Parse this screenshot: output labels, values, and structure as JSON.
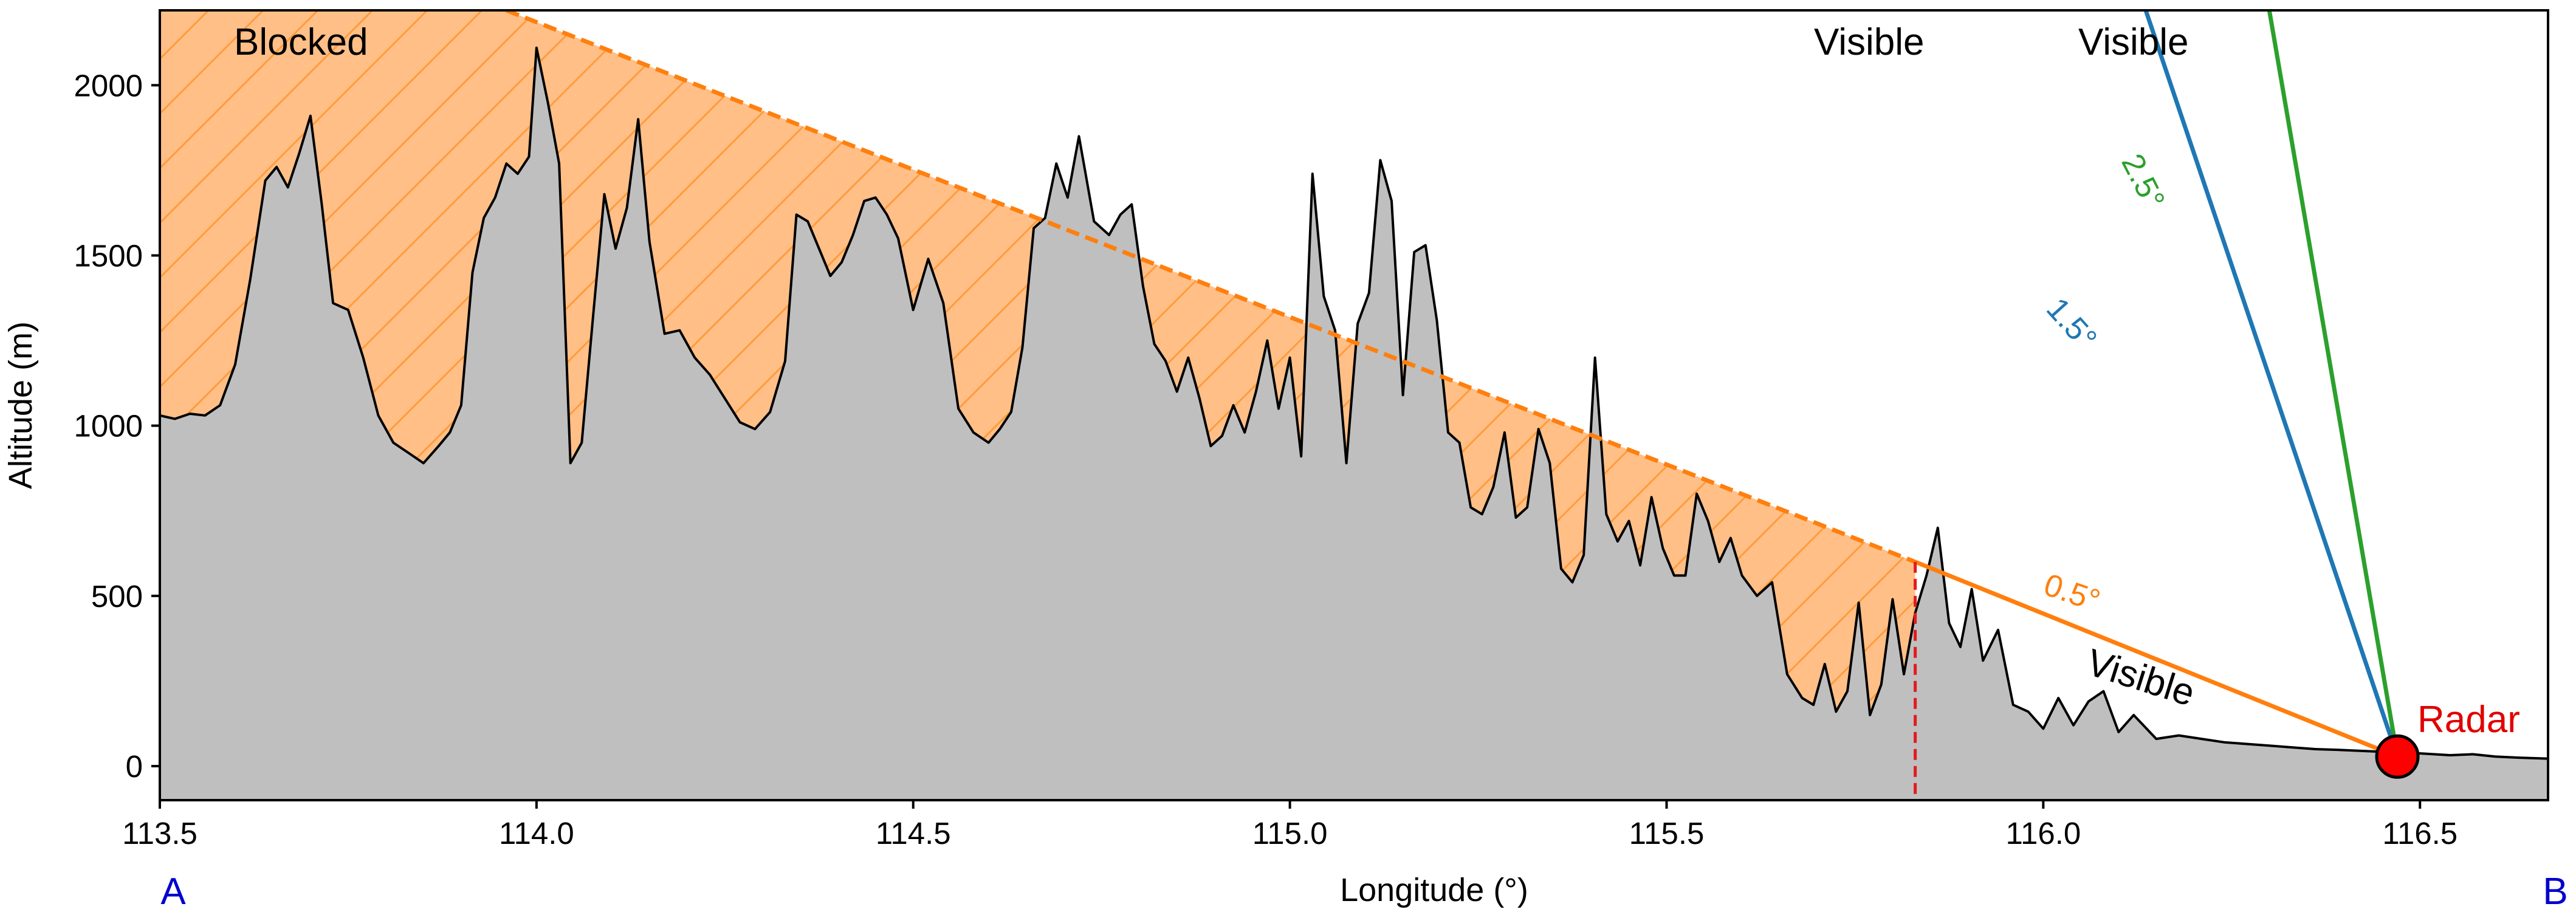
{
  "chart_data": {
    "type": "area",
    "xlabel": "Longitude (°)",
    "ylabel": "Altitude (m)",
    "xlim": [
      113.5,
      116.67
    ],
    "ylim": [
      -100,
      2220
    ],
    "xticks": [
      113.5,
      114.0,
      114.5,
      115.0,
      115.5,
      116.0,
      116.5
    ],
    "xtick_labels": [
      "113.5",
      "114.0",
      "114.5",
      "115.0",
      "115.5",
      "116.0",
      "116.5"
    ],
    "yticks": [
      0,
      500,
      1000,
      1500,
      2000
    ],
    "ytick_labels": [
      "0",
      "500",
      "1000",
      "1500",
      "2000"
    ],
    "grid": false,
    "terrain": {
      "x": [
        113.5,
        113.52,
        113.54,
        113.56,
        113.58,
        113.6,
        113.62,
        113.64,
        113.655,
        113.67,
        113.685,
        113.7,
        113.715,
        113.73,
        113.75,
        113.77,
        113.79,
        113.81,
        113.83,
        113.85,
        113.87,
        113.885,
        113.9,
        113.915,
        113.93,
        113.945,
        113.96,
        113.975,
        113.99,
        114.0,
        114.015,
        114.03,
        114.045,
        114.06,
        114.075,
        114.09,
        114.105,
        114.12,
        114.135,
        114.15,
        114.17,
        114.19,
        114.21,
        114.23,
        114.25,
        114.27,
        114.29,
        114.31,
        114.33,
        114.345,
        114.36,
        114.375,
        114.39,
        114.405,
        114.42,
        114.435,
        114.45,
        114.465,
        114.48,
        114.5,
        114.52,
        114.54,
        114.56,
        114.58,
        114.6,
        114.615,
        114.63,
        114.645,
        114.66,
        114.675,
        114.69,
        114.705,
        114.72,
        114.74,
        114.76,
        114.775,
        114.79,
        114.805,
        114.82,
        114.835,
        114.85,
        114.865,
        114.88,
        114.895,
        114.91,
        114.925,
        114.94,
        114.955,
        114.97,
        114.985,
        115.0,
        115.015,
        115.03,
        115.045,
        115.06,
        115.075,
        115.09,
        115.105,
        115.12,
        115.135,
        115.15,
        115.165,
        115.18,
        115.195,
        115.21,
        115.225,
        115.24,
        115.255,
        115.27,
        115.285,
        115.3,
        115.315,
        115.33,
        115.345,
        115.36,
        115.375,
        115.39,
        115.405,
        115.42,
        115.435,
        115.45,
        115.465,
        115.48,
        115.495,
        115.51,
        115.525,
        115.54,
        115.555,
        115.57,
        115.585,
        115.6,
        115.62,
        115.64,
        115.66,
        115.68,
        115.695,
        115.71,
        115.725,
        115.74,
        115.755,
        115.77,
        115.785,
        115.8,
        115.815,
        115.83,
        115.845,
        115.86,
        115.875,
        115.89,
        115.905,
        115.92,
        115.94,
        115.96,
        115.98,
        116.0,
        116.02,
        116.04,
        116.06,
        116.08,
        116.1,
        116.12,
        116.15,
        116.18,
        116.21,
        116.24,
        116.27,
        116.3,
        116.33,
        116.36,
        116.39,
        116.42,
        116.45,
        116.48,
        116.51,
        116.54,
        116.57,
        116.6,
        116.63,
        116.67
      ],
      "altitude": [
        1030,
        1020,
        1035,
        1030,
        1060,
        1180,
        1430,
        1720,
        1760,
        1700,
        1800,
        1910,
        1650,
        1360,
        1340,
        1200,
        1030,
        950,
        920,
        890,
        940,
        980,
        1060,
        1450,
        1610,
        1670,
        1770,
        1740,
        1790,
        2110,
        1950,
        1770,
        890,
        950,
        1320,
        1680,
        1520,
        1640,
        1900,
        1540,
        1270,
        1280,
        1200,
        1150,
        1080,
        1010,
        990,
        1040,
        1190,
        1620,
        1600,
        1520,
        1440,
        1480,
        1560,
        1660,
        1670,
        1620,
        1550,
        1340,
        1490,
        1360,
        1050,
        980,
        950,
        990,
        1040,
        1230,
        1580,
        1610,
        1770,
        1670,
        1850,
        1600,
        1560,
        1620,
        1650,
        1410,
        1240,
        1190,
        1100,
        1200,
        1080,
        940,
        970,
        1060,
        980,
        1100,
        1250,
        1050,
        1200,
        910,
        1740,
        1380,
        1280,
        890,
        1300,
        1390,
        1780,
        1660,
        1090,
        1510,
        1530,
        1310,
        980,
        950,
        760,
        740,
        820,
        980,
        730,
        760,
        990,
        890,
        580,
        540,
        620,
        1200,
        740,
        660,
        720,
        590,
        790,
        640,
        560,
        560,
        800,
        720,
        600,
        670,
        560,
        500,
        540,
        270,
        200,
        180,
        300,
        160,
        220,
        480,
        150,
        240,
        490,
        270,
        450,
        560,
        700,
        420,
        350,
        520,
        310,
        400,
        180,
        160,
        110,
        200,
        120,
        190,
        220,
        100,
        150,
        80,
        90,
        80,
        70,
        65,
        60,
        55,
        50,
        48,
        45,
        42,
        40,
        36,
        32,
        35,
        28,
        25,
        22,
        20,
        20
      ]
    },
    "beams": [
      {
        "label": "0.5°",
        "color": "#ff7f0e",
        "points": [
          [
            113.96,
            2220
          ],
          [
            115.83,
            600
          ],
          [
            116.47,
            28
          ]
        ]
      },
      {
        "label": "1.5°",
        "color": "#1f77b4",
        "points": [
          [
            116.47,
            28
          ],
          [
            116.136,
            2220
          ]
        ]
      },
      {
        "label": "2.5°",
        "color": "#2ca02c",
        "points": [
          [
            116.47,
            28
          ],
          [
            116.3,
            2220
          ]
        ]
      }
    ],
    "blocked_region": {
      "label": "Blocked",
      "color": "#ff7f0e",
      "shadow_end_x": 115.83
    },
    "visible_labels": [
      "Visible",
      "Visible",
      "Visible"
    ],
    "radar": {
      "label": "Radar",
      "x": 116.47,
      "altitude": 28,
      "color": "#ff0000"
    },
    "endpoints": {
      "start": "A",
      "end": "B"
    },
    "colors": {
      "terrain_fill": "#bfbfbf",
      "terrain_line": "#000000",
      "blocked_fill": "#ffbf87",
      "shadow_line": "#e41a1c"
    }
  }
}
